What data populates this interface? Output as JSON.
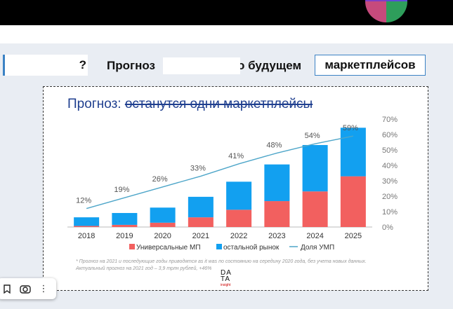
{
  "header": {
    "title_left": "Прогноз",
    "title_right": "о будущем",
    "boxed_word": "маркетплейсов",
    "mask_mark": "?"
  },
  "slide": {
    "title_prefix": "Прогноз: ",
    "title_struck": "останутся одни маркетплейсы",
    "footnote": "* Прогноз на 2021 и последующие годы приводятся as it was по состоянию на середину 2020 года, без учета новых данных. Актуальный прогноз на 2021 год – 3,9 трлн рублей, +46%",
    "logo_lines": [
      "DA",
      "TA"
    ],
    "logo_sub": "insight"
  },
  "chart_data": {
    "type": "bar",
    "stacked": true,
    "categories": [
      "2018",
      "2019",
      "2020",
      "2021",
      "2022",
      "2023",
      "2024",
      "2025"
    ],
    "series": [
      {
        "name": "Универсальные МП",
        "color": "#f2605f",
        "values": [
          1,
          2,
          4,
          9,
          16,
          24,
          33,
          47
        ]
      },
      {
        "name": "остальной рынок",
        "color": "#12a0f0",
        "values": [
          8,
          11,
          14,
          19,
          26,
          34,
          43,
          45
        ]
      }
    ],
    "line": {
      "name": "Доля УМП",
      "color": "#4ea6c9",
      "values": [
        12,
        19,
        26,
        33,
        41,
        48,
        54,
        59
      ],
      "labels": [
        "12%",
        "19%",
        "26%",
        "33%",
        "41%",
        "48%",
        "54%",
        "59%"
      ]
    },
    "right_axis": {
      "ticks": [
        "0%",
        "10%",
        "20%",
        "30%",
        "40%",
        "50%",
        "60%",
        "70%"
      ],
      "range": [
        0,
        70
      ]
    },
    "bar_max": 100,
    "legend": [
      "Универсальные МП",
      "остальной рынок",
      "Доля УМП"
    ]
  },
  "toolbar": {
    "icons": [
      "bookmark-icon",
      "camera-icon",
      "more-icon"
    ],
    "more_label": "⋮"
  }
}
